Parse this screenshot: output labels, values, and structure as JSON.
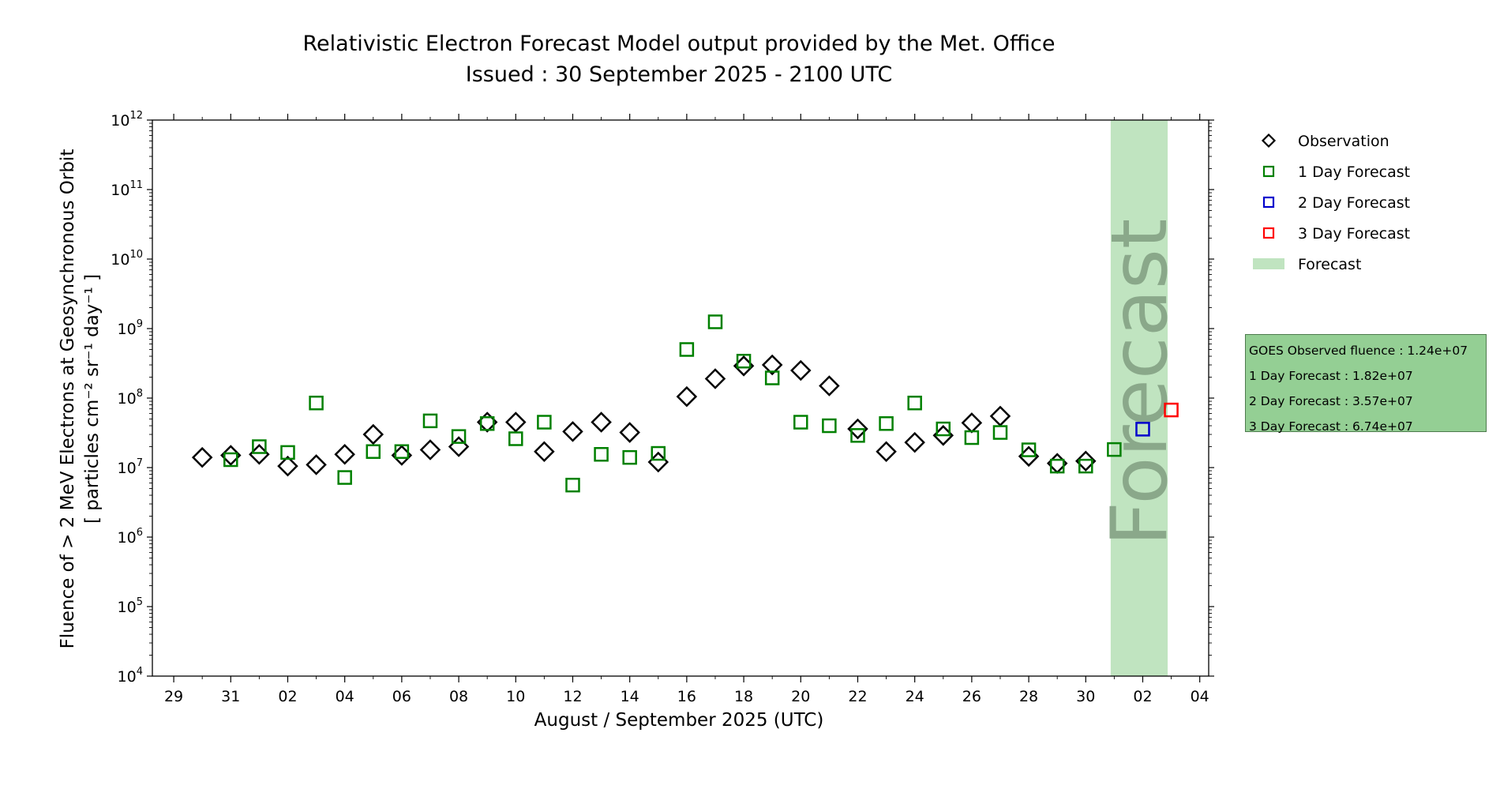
{
  "chart_data": {
    "type": "scatter",
    "title_line1": "Relativistic Electron Forecast Model output provided by the Met. Office",
    "title_line2": "Issued : 30 September 2025 - 2100 UTC",
    "xlabel": "August / September 2025 (UTC)",
    "ylabel_line1": "Fluence of > 2 MeV Electrons at Geosynchronous Orbit",
    "ylabel_line2": "[ particles cm⁻² sr⁻¹ day⁻¹ ]",
    "y_scale": "log",
    "ylim": [
      10000,
      1000000000000
    ],
    "y_ticks": [
      {
        "exp": "4"
      },
      {
        "exp": "5"
      },
      {
        "exp": "6"
      },
      {
        "exp": "7"
      },
      {
        "exp": "8"
      },
      {
        "exp": "9"
      },
      {
        "exp": "10"
      },
      {
        "exp": "11"
      },
      {
        "exp": "12"
      }
    ],
    "x_tick_labels": [
      "29",
      "31",
      "02",
      "04",
      "06",
      "08",
      "10",
      "12",
      "14",
      "16",
      "18",
      "20",
      "22",
      "24",
      "26",
      "28",
      "30",
      "02",
      "04"
    ],
    "x_tick_dates": [
      "2025-08-29",
      "2025-08-31",
      "2025-09-02",
      "2025-09-04",
      "2025-09-06",
      "2025-09-08",
      "2025-09-10",
      "2025-09-12",
      "2025-09-14",
      "2025-09-16",
      "2025-09-18",
      "2025-09-20",
      "2025-09-22",
      "2025-09-24",
      "2025-09-26",
      "2025-09-28",
      "2025-09-30",
      "2025-10-02",
      "2025-10-04"
    ],
    "xlim": [
      "2025-08-28T06:00",
      "2025-10-04T15:00"
    ],
    "forecast_span": {
      "start": "2025-09-30T21:00",
      "end": "2025-10-02T21:00",
      "label": "Forecast",
      "color": "#c0e4c0"
    },
    "series": [
      {
        "name": "Observation",
        "marker": "diamond",
        "color": "#000000",
        "points": [
          {
            "x": "2025-08-30",
            "y": 14000000
          },
          {
            "x": "2025-08-31",
            "y": 15000000
          },
          {
            "x": "2025-09-01",
            "y": 15500000
          },
          {
            "x": "2025-09-02",
            "y": 10500000
          },
          {
            "x": "2025-09-03",
            "y": 11000000
          },
          {
            "x": "2025-09-04",
            "y": 15500000
          },
          {
            "x": "2025-09-05",
            "y": 30000000
          },
          {
            "x": "2025-09-06",
            "y": 15000000
          },
          {
            "x": "2025-09-07",
            "y": 18000000
          },
          {
            "x": "2025-09-08",
            "y": 20000000
          },
          {
            "x": "2025-09-09",
            "y": 45000000
          },
          {
            "x": "2025-09-10",
            "y": 45000000
          },
          {
            "x": "2025-09-11",
            "y": 17000000
          },
          {
            "x": "2025-09-12",
            "y": 33000000
          },
          {
            "x": "2025-09-13",
            "y": 45000000
          },
          {
            "x": "2025-09-14",
            "y": 32000000
          },
          {
            "x": "2025-09-15",
            "y": 12000000
          },
          {
            "x": "2025-09-16",
            "y": 105000000
          },
          {
            "x": "2025-09-17",
            "y": 190000000
          },
          {
            "x": "2025-09-18",
            "y": 290000000
          },
          {
            "x": "2025-09-19",
            "y": 300000000
          },
          {
            "x": "2025-09-20",
            "y": 250000000
          },
          {
            "x": "2025-09-21",
            "y": 150000000
          },
          {
            "x": "2025-09-22",
            "y": 36000000
          },
          {
            "x": "2025-09-23",
            "y": 17000000
          },
          {
            "x": "2025-09-24",
            "y": 23000000
          },
          {
            "x": "2025-09-25",
            "y": 29000000
          },
          {
            "x": "2025-09-26",
            "y": 44000000
          },
          {
            "x": "2025-09-27",
            "y": 55000000
          },
          {
            "x": "2025-09-28",
            "y": 14500000
          },
          {
            "x": "2025-09-29",
            "y": 11500000
          },
          {
            "x": "2025-09-30",
            "y": 12400000
          }
        ]
      },
      {
        "name": "1 Day Forecast",
        "marker": "square",
        "color": "#008000",
        "points": [
          {
            "x": "2025-08-31",
            "y": 13000000
          },
          {
            "x": "2025-09-01",
            "y": 20000000
          },
          {
            "x": "2025-09-02",
            "y": 16500000
          },
          {
            "x": "2025-09-03",
            "y": 85000000
          },
          {
            "x": "2025-09-04",
            "y": 7200000
          },
          {
            "x": "2025-09-05",
            "y": 17000000
          },
          {
            "x": "2025-09-06",
            "y": 17000000
          },
          {
            "x": "2025-09-07",
            "y": 47000000
          },
          {
            "x": "2025-09-08",
            "y": 28000000
          },
          {
            "x": "2025-09-09",
            "y": 43000000
          },
          {
            "x": "2025-09-10",
            "y": 26000000
          },
          {
            "x": "2025-09-11",
            "y": 45000000
          },
          {
            "x": "2025-09-12",
            "y": 5600000
          },
          {
            "x": "2025-09-13",
            "y": 15500000
          },
          {
            "x": "2025-09-14",
            "y": 14000000
          },
          {
            "x": "2025-09-15",
            "y": 16000000
          },
          {
            "x": "2025-09-16",
            "y": 500000000
          },
          {
            "x": "2025-09-17",
            "y": 1250000000
          },
          {
            "x": "2025-09-18",
            "y": 340000000
          },
          {
            "x": "2025-09-19",
            "y": 195000000
          },
          {
            "x": "2025-09-20",
            "y": 45000000
          },
          {
            "x": "2025-09-21",
            "y": 40000000
          },
          {
            "x": "2025-09-22",
            "y": 29000000
          },
          {
            "x": "2025-09-23",
            "y": 43000000
          },
          {
            "x": "2025-09-24",
            "y": 85000000
          },
          {
            "x": "2025-09-25",
            "y": 36000000
          },
          {
            "x": "2025-09-26",
            "y": 27000000
          },
          {
            "x": "2025-09-27",
            "y": 32000000
          },
          {
            "x": "2025-09-28",
            "y": 18000000
          },
          {
            "x": "2025-09-29",
            "y": 10500000
          },
          {
            "x": "2025-09-30",
            "y": 10500000
          },
          {
            "x": "2025-10-01",
            "y": 18200000
          }
        ]
      },
      {
        "name": "2 Day Forecast",
        "marker": "square",
        "color": "#0000cc",
        "points": [
          {
            "x": "2025-10-02",
            "y": 35700000
          }
        ]
      },
      {
        "name": "3 Day Forecast",
        "marker": "square",
        "color": "#ff0000",
        "points": [
          {
            "x": "2025-10-03",
            "y": 67400000
          }
        ]
      }
    ],
    "legend": {
      "placement": "upper-right outside",
      "entries": [
        "Observation",
        "1 Day Forecast",
        "2 Day Forecast",
        "3 Day Forecast",
        "Forecast"
      ]
    },
    "summary_box": [
      "GOES Observed fluence : 1.24e+07",
      "1 Day Forecast : 1.82e+07",
      "2 Day Forecast : 3.57e+07",
      "3 Day Forecast : 6.74e+07"
    ],
    "grid": false
  }
}
